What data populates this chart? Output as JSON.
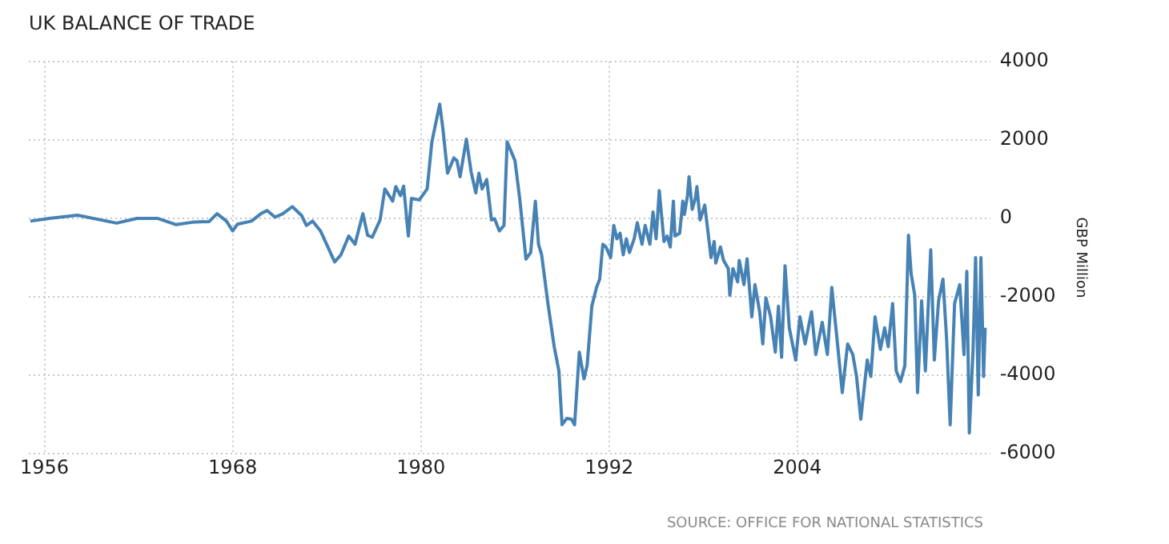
{
  "chart_data": {
    "type": "line",
    "title": "UK BALANCE OF TRADE",
    "ylabel": "GBP Million",
    "annotations": [
      "SOURCE: OFFICE FOR NATIONAL STATISTICS"
    ],
    "x": [
      1955.1,
      1956.3,
      1958.1,
      1960.6,
      1961.9,
      1963.2,
      1964.4,
      1965.4,
      1966.5,
      1967.0,
      1967.6,
      1968.0,
      1968.3,
      1969.2,
      1969.8,
      1970.2,
      1970.7,
      1971.2,
      1971.8,
      1972.4,
      1972.7,
      1973.1,
      1973.6,
      1974.5,
      1974.9,
      1975.4,
      1975.8,
      1976.3,
      1976.6,
      1976.9,
      1977.4,
      1977.7,
      1978.2,
      1978.4,
      1978.7,
      1978.9,
      1979.2,
      1979.4,
      1979.9,
      1980.4,
      1980.7,
      1981.2,
      1981.4,
      1981.7,
      1982.1,
      1982.3,
      1982.5,
      1982.9,
      1983.2,
      1983.5,
      1983.7,
      1983.9,
      1984.2,
      1984.5,
      1984.7,
      1985.0,
      1985.3,
      1985.5,
      1986.0,
      1986.3,
      1986.7,
      1987.0,
      1987.3,
      1987.5,
      1987.7,
      1988.1,
      1988.5,
      1988.8,
      1989.0,
      1989.3,
      1989.6,
      1989.8,
      1990.1,
      1990.4,
      1990.6,
      1990.9,
      1991.2,
      1991.4,
      1991.6,
      1991.8,
      1992.1,
      1992.3,
      1992.5,
      1992.7,
      1992.9,
      1993.1,
      1993.3,
      1993.6,
      1993.8,
      1994.1,
      1994.3,
      1994.6,
      1994.8,
      1995.0,
      1995.2,
      1995.5,
      1995.7,
      1995.9,
      1996.1,
      1996.2,
      1996.5,
      1996.7,
      1996.8,
      1997.0,
      1997.1,
      1997.3,
      1997.5,
      1997.6,
      1997.8,
      1998.1,
      1998.3,
      1998.5,
      1998.7,
      1998.8,
      1999.1,
      1999.3,
      1999.6,
      1999.7,
      1999.9,
      2000.2,
      2000.3,
      2000.6,
      2000.8,
      2001.1,
      2001.3,
      2001.6,
      2001.8,
      2002.0,
      2002.3,
      2002.6,
      2002.8,
      2003.0,
      2003.22,
      2003.49,
      2003.9,
      2004.17,
      2004.5,
      2004.91,
      2005.18,
      2005.59,
      2005.92,
      2006.2,
      2006.53,
      2006.87,
      2007.21,
      2007.54,
      2007.78,
      2008.05,
      2008.46,
      2008.69,
      2008.96,
      2009.3,
      2009.57,
      2009.8,
      2010.08,
      2010.31,
      2010.58,
      2010.86,
      2011.09,
      2011.26,
      2011.49,
      2011.67,
      2011.93,
      2012.17,
      2012.51,
      2012.74,
      2013.01,
      2013.29,
      2013.52,
      2013.75,
      2014.03,
      2014.36,
      2014.63,
      2014.81,
      2014.97,
      2015.21,
      2015.37,
      2015.54,
      2015.71,
      2015.88,
      2015.98
    ],
    "series": [
      {
        "color": "#4682b4",
        "values": [
          -70,
          0,
          80,
          -120,
          0,
          0,
          -160,
          -100,
          -80,
          120,
          -70,
          -320,
          -150,
          -70,
          120,
          200,
          30,
          120,
          300,
          70,
          -180,
          -70,
          -320,
          -1110,
          -930,
          -450,
          -660,
          120,
          -430,
          -480,
          -40,
          750,
          440,
          810,
          580,
          820,
          -450,
          510,
          470,
          750,
          1950,
          2910,
          2300,
          1150,
          1540,
          1470,
          1060,
          2020,
          1190,
          650,
          1150,
          750,
          990,
          -40,
          -10,
          -320,
          -180,
          1950,
          1470,
          510,
          -1040,
          -870,
          440,
          -660,
          -930,
          -2170,
          -3270,
          -3890,
          -5260,
          -5100,
          -5120,
          -5260,
          -3410,
          -4090,
          -3750,
          -2240,
          -1760,
          -1550,
          -660,
          -730,
          -1000,
          -180,
          -520,
          -380,
          -930,
          -520,
          -870,
          -520,
          -110,
          -660,
          -180,
          -660,
          160,
          -520,
          710,
          -590,
          -450,
          -730,
          440,
          -450,
          -380,
          440,
          100,
          580,
          1060,
          230,
          510,
          810,
          -40,
          340,
          -320,
          -1000,
          -590,
          -1140,
          -730,
          -1070,
          -1280,
          -1960,
          -1280,
          -1620,
          -1070,
          -1690,
          -1030,
          -2510,
          -1690,
          -2380,
          -3200,
          -2030,
          -2510,
          -3410,
          -2240,
          -3540,
          -1210,
          -2790,
          -3610,
          -2510,
          -3200,
          -2380,
          -3470,
          -2650,
          -3470,
          -1760,
          -3060,
          -4440,
          -3200,
          -3470,
          -4030,
          -5120,
          -3610,
          -4030,
          -2510,
          -3340,
          -2790,
          -3270,
          -2170,
          -3890,
          -4160,
          -3750,
          -430,
          -1410,
          -1960,
          -4440,
          -2100,
          -3890,
          -800,
          -3610,
          -2100,
          -1550,
          -3060,
          -5260,
          -2170,
          -1690,
          -3470,
          -1350,
          -5470,
          -3340,
          -1000,
          -4500,
          -1000,
          -4030,
          -2790
        ]
      }
    ],
    "xlim": [
      1955,
      2016.3
    ],
    "xticks": [
      1956,
      1968,
      1980,
      1992,
      2004
    ],
    "ylim": [
      -6000,
      4000
    ],
    "yticks": [
      -6000,
      -4000,
      -2000,
      0,
      2000,
      4000
    ],
    "grid": true,
    "legend": false
  }
}
